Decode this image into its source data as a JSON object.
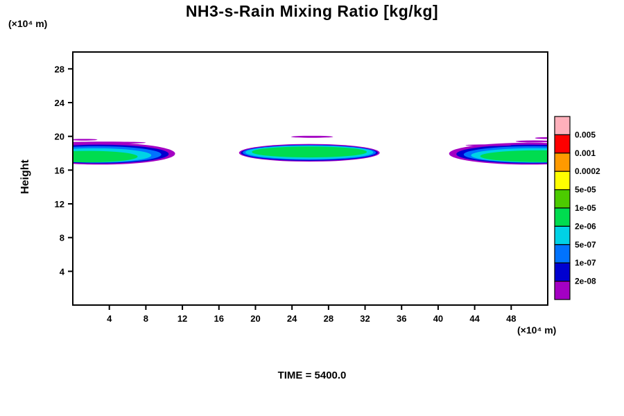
{
  "chart_data": {
    "type": "filled-contour",
    "title": "NH3-s-Rain Mixing Ratio [kg/kg]",
    "ylabel": "Height",
    "ylabel_units": "(×10⁴ m)",
    "xlabel": "(×10⁴ m)",
    "annotation": "TIME = 5400.0",
    "xlim": [
      0,
      52
    ],
    "ylim": [
      0,
      30
    ],
    "x_ticks": [
      4,
      8,
      12,
      16,
      20,
      24,
      28,
      32,
      36,
      40,
      44,
      48
    ],
    "y_ticks": [
      4,
      8,
      12,
      16,
      20,
      24,
      28
    ],
    "grid": false,
    "legend": {
      "position": "right",
      "levels": [
        "0.005",
        "0.001",
        "0.0002",
        "5e-05",
        "1e-05",
        "2e-06",
        "5e-07",
        "1e-07",
        "2e-08"
      ],
      "colors": [
        "#ffb0bb",
        "#fe0000",
        "#ff9a00",
        "#fffe00",
        "#4ccb00",
        "#00dc4f",
        "#00d2e6",
        "#0173fe",
        "#0000d0",
        "#a400c3"
      ]
    },
    "features": [
      {
        "name": "left-cloud",
        "layers": [
          {
            "level": "2e-08",
            "color": "#a400c3",
            "cx": 3.0,
            "cy": 17.95,
            "rx": 8.2,
            "ry": 1.3
          },
          {
            "level": "1e-07",
            "color": "#0000d0",
            "cx": 2.9,
            "cy": 17.9,
            "rx": 7.6,
            "ry": 1.12
          },
          {
            "level": "5e-07",
            "color": "#0173fe",
            "cx": 2.7,
            "cy": 17.85,
            "rx": 7.0,
            "ry": 0.98
          },
          {
            "level": "2e-06",
            "color": "#00d2e6",
            "cx": 2.4,
            "cy": 17.75,
            "rx": 6.2,
            "ry": 0.84
          },
          {
            "level": "1e-05",
            "color": "#00dc4f",
            "cx": 1.8,
            "cy": 17.6,
            "rx": 5.3,
            "ry": 0.68
          }
        ]
      },
      {
        "name": "center-cloud",
        "layers": [
          {
            "level": "2e-08",
            "color": "#a400c3",
            "cx": 25.9,
            "cy": 18.05,
            "rx": 7.7,
            "ry": 1.05
          },
          {
            "level": "1e-07",
            "color": "#0000d0",
            "cx": 25.9,
            "cy": 18.05,
            "rx": 7.5,
            "ry": 0.95
          },
          {
            "level": "5e-07",
            "color": "#0173fe",
            "cx": 25.9,
            "cy": 18.08,
            "rx": 7.3,
            "ry": 0.88
          },
          {
            "level": "2e-06",
            "color": "#00d2e6",
            "cx": 25.9,
            "cy": 18.1,
            "rx": 7.0,
            "ry": 0.8
          },
          {
            "level": "1e-05",
            "color": "#00dc4f",
            "cx": 25.9,
            "cy": 18.15,
            "rx": 6.3,
            "ry": 0.65
          }
        ]
      },
      {
        "name": "right-cloud",
        "layers": [
          {
            "level": "2e-08",
            "color": "#a400c3",
            "cx": 50.0,
            "cy": 17.95,
            "rx": 8.8,
            "ry": 1.3
          },
          {
            "level": "1e-07",
            "color": "#0000d0",
            "cx": 50.2,
            "cy": 17.9,
            "rx": 8.2,
            "ry": 1.12
          },
          {
            "level": "5e-07",
            "color": "#0173fe",
            "cx": 50.5,
            "cy": 17.85,
            "rx": 7.7,
            "ry": 0.98
          },
          {
            "level": "2e-06",
            "color": "#00d2e6",
            "cx": 50.8,
            "cy": 17.75,
            "rx": 7.2,
            "ry": 0.85
          },
          {
            "level": "1e-05",
            "color": "#00dc4f",
            "cx": 51.2,
            "cy": 17.65,
            "rx": 6.6,
            "ry": 0.7
          }
        ]
      },
      {
        "name": "detached-slivers",
        "layers": [
          {
            "level": "2e-08",
            "color": "#a400c3",
            "cx": 1.2,
            "cy": 19.6,
            "rx": 1.5,
            "ry": 0.1
          },
          {
            "level": "2e-08",
            "color": "#a400c3",
            "cx": 3.5,
            "cy": 19.25,
            "rx": 4.5,
            "ry": 0.13
          },
          {
            "level": "2e-08",
            "color": "#a400c3",
            "cx": 26.2,
            "cy": 19.95,
            "rx": 2.3,
            "ry": 0.12
          },
          {
            "level": "2e-08",
            "color": "#a400c3",
            "cx": 45.5,
            "cy": 18.95,
            "rx": 2.5,
            "ry": 0.1
          },
          {
            "level": "2e-08",
            "color": "#a400c3",
            "cx": 50.5,
            "cy": 19.4,
            "rx": 2.0,
            "ry": 0.12
          },
          {
            "level": "2e-08",
            "color": "#a400c3",
            "cx": 51.8,
            "cy": 19.8,
            "rx": 1.2,
            "ry": 0.1
          }
        ]
      }
    ]
  }
}
